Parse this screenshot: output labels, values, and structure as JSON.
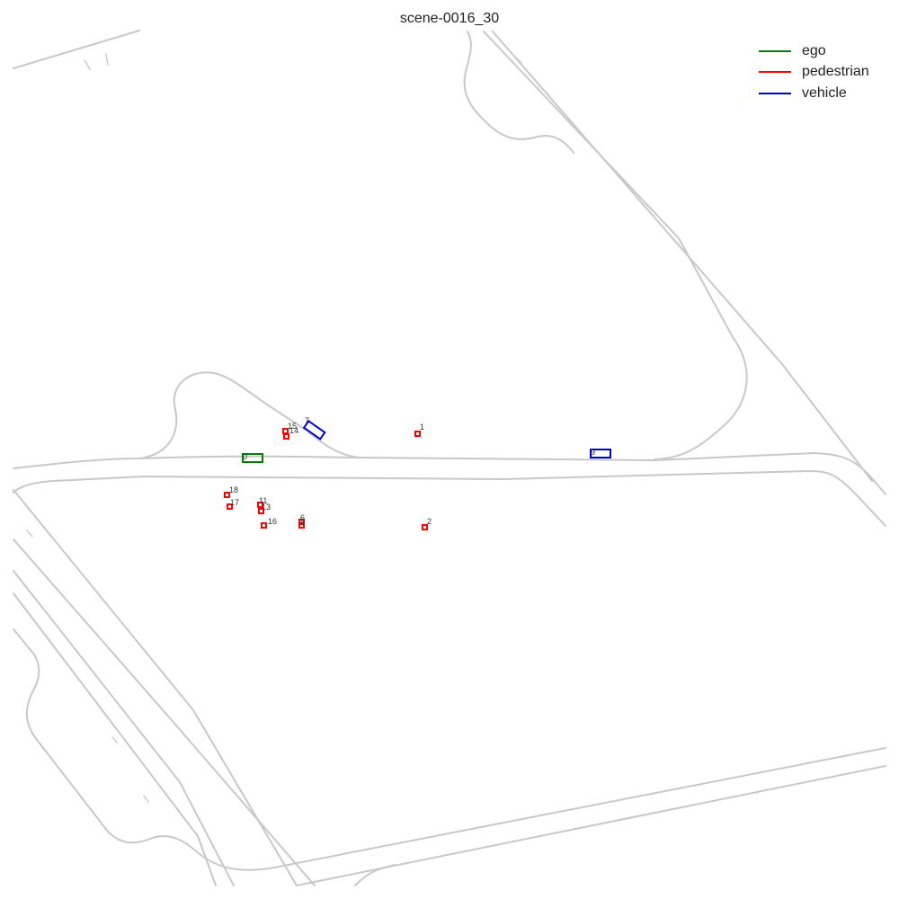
{
  "title": "scene-0016_30",
  "legend": [
    {
      "label": "ego",
      "color": "#008000"
    },
    {
      "label": "pedestrian",
      "color": "#ff0000"
    },
    {
      "label": "vehicle",
      "color": "#0000cc"
    }
  ],
  "agents": [
    {
      "id": "0",
      "type": "ego"
    },
    {
      "id": "7",
      "type": "vehicle"
    },
    {
      "id": "9",
      "type": "vehicle"
    },
    {
      "id": "1",
      "type": "pedestrian"
    },
    {
      "id": "2",
      "type": "pedestrian"
    },
    {
      "id": "6",
      "type": "pedestrian"
    },
    {
      "id": "8",
      "type": "pedestrian"
    },
    {
      "id": "11",
      "type": "pedestrian"
    },
    {
      "id": "13",
      "type": "pedestrian"
    },
    {
      "id": "14",
      "type": "pedestrian"
    },
    {
      "id": "15",
      "type": "pedestrian"
    },
    {
      "id": "16",
      "type": "pedestrian"
    },
    {
      "id": "17",
      "type": "pedestrian"
    },
    {
      "id": "18",
      "type": "pedestrian"
    }
  ]
}
